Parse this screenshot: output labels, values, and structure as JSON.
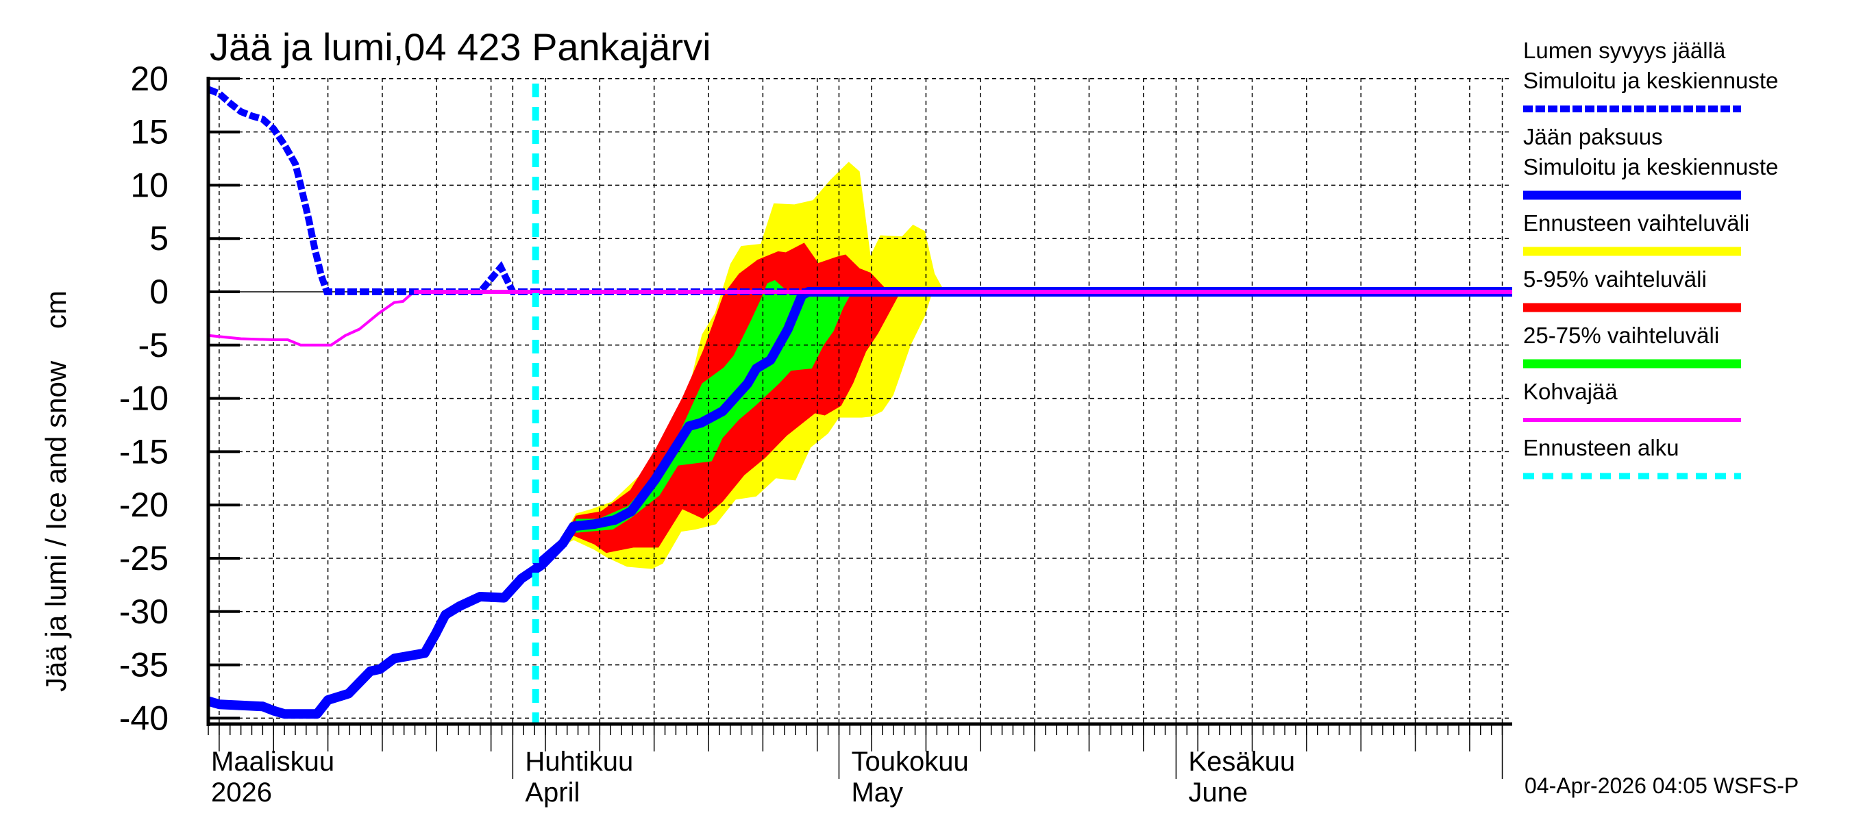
{
  "title": "Jää ja lumi,04 423 Pankajärvi",
  "y_axis_label": "Jää ja lumi / Ice and snow    cm",
  "timestamp": "04-Apr-2026 04:05 WSFS-P",
  "colors": {
    "snow_depth": "#0000ff",
    "ice_thickness": "#0000ff",
    "forecast_range": "#ffff00",
    "range_5_95": "#ff0000",
    "range_25_75": "#00ff00",
    "slush_ice": "#ff00ff",
    "forecast_start": "#00ffff",
    "grid": "#000000"
  },
  "x_axis": {
    "months": [
      {
        "fi": "Maaliskuu",
        "en": "2026",
        "day": 0
      },
      {
        "fi": "Huhtikuu",
        "en": "April",
        "day": 28
      },
      {
        "fi": "Toukokuu",
        "en": "May",
        "day": 58
      },
      {
        "fi": "Kesäkuu",
        "en": "June",
        "day": 89
      }
    ]
  },
  "legend": [
    {
      "line1": "Lumen syvyys jäällä",
      "line2": "Simuloitu ja keskiennuste",
      "style": "dashed-thick",
      "color": "#0000ff"
    },
    {
      "line1": "Jään paksuus",
      "line2": "Simuloitu ja keskiennuste",
      "style": "solid-thick",
      "color": "#0000ff"
    },
    {
      "line1": "Ennusteen vaihteluväli",
      "line2": "",
      "style": "solid-thick",
      "color": "#ffff00"
    },
    {
      "line1": "5-95% vaihteluväli",
      "line2": "",
      "style": "solid-thick",
      "color": "#ff0000"
    },
    {
      "line1": "25-75% vaihteluväli",
      "line2": "",
      "style": "solid-thick",
      "color": "#00ff00"
    },
    {
      "line1": "Kohvajää",
      "line2": "",
      "style": "solid-thin",
      "color": "#ff00ff"
    },
    {
      "line1": "Ennusteen alku",
      "line2": "",
      "style": "dashed-cyan",
      "color": "#00ffff"
    }
  ],
  "chart_data": {
    "type": "area",
    "title": "Jää ja lumi,04 423 Pankajärvi",
    "xlabel": "",
    "ylabel": "Jää ja lumi / Ice and snow cm",
    "ylim": [
      -40,
      20
    ],
    "yticks": [
      20,
      15,
      10,
      5,
      0,
      -5,
      -10,
      -15,
      -20,
      -25,
      -30,
      -35,
      -40
    ],
    "x_start_date": "2026-03-04",
    "x_end_date": "2026-07-03",
    "x_unit": "days since 2026-03-04",
    "xlim": [
      0,
      120
    ],
    "grid": true,
    "legend_position": "right",
    "forecast_start_day": 30.1,
    "series": [
      {
        "name": "Lumen syvyys jäällä (Simuloitu ja keskiennuste)",
        "kind": "line-dashed",
        "points": [
          [
            0,
            19.0
          ],
          [
            1,
            18.6
          ],
          [
            2,
            17.7
          ],
          [
            3,
            16.9
          ],
          [
            4,
            16.5
          ],
          [
            5,
            16.2
          ],
          [
            6,
            15.3
          ],
          [
            7,
            13.8
          ],
          [
            8,
            12.0
          ],
          [
            8.5,
            10.0
          ],
          [
            9.3,
            6.5
          ],
          [
            9.8,
            4.0
          ],
          [
            10.4,
            1.5
          ],
          [
            10.9,
            0
          ],
          [
            14,
            0
          ],
          [
            20,
            0
          ],
          [
            25,
            0
          ],
          [
            26.9,
            2.3
          ],
          [
            28,
            0
          ],
          [
            31,
            0
          ],
          [
            40,
            0
          ],
          [
            55,
            0
          ],
          [
            120,
            0
          ]
        ]
      },
      {
        "name": "Jään paksuus (Simuloitu)",
        "kind": "line-thick",
        "points": [
          [
            0,
            -38.4
          ],
          [
            1,
            -38.7
          ],
          [
            3,
            -38.8
          ],
          [
            5,
            -38.9
          ],
          [
            6,
            -39.3
          ],
          [
            7,
            -39.6
          ],
          [
            10,
            -39.6
          ],
          [
            11,
            -38.3
          ],
          [
            12.9,
            -37.7
          ],
          [
            14.9,
            -35.6
          ],
          [
            15.8,
            -35.4
          ],
          [
            17.1,
            -34.4
          ],
          [
            19.9,
            -33.9
          ],
          [
            20.9,
            -32.1
          ],
          [
            21.8,
            -30.3
          ],
          [
            23.1,
            -29.5
          ],
          [
            25,
            -28.6
          ],
          [
            27.2,
            -28.7
          ],
          [
            28.8,
            -26.9
          ],
          [
            30.7,
            -25.6
          ],
          [
            32.6,
            -23.6
          ],
          [
            33.6,
            -22.0
          ]
        ]
      },
      {
        "name": "Jään paksuus (keskiennuste)",
        "kind": "line-thick",
        "points": [
          [
            30.1,
            -25.8
          ],
          [
            32.6,
            -23.6
          ],
          [
            33.6,
            -22.0
          ],
          [
            35.5,
            -21.8
          ],
          [
            37.4,
            -21.4
          ],
          [
            38.9,
            -20.6
          ],
          [
            41.1,
            -17.6
          ],
          [
            43.4,
            -13.9
          ],
          [
            44.2,
            -12.6
          ],
          [
            45.3,
            -12.3
          ],
          [
            47.3,
            -11.2
          ],
          [
            49.6,
            -8.6
          ],
          [
            50.4,
            -7.2
          ],
          [
            51.7,
            -6.4
          ],
          [
            53.3,
            -3.5
          ],
          [
            54.6,
            -0.3
          ],
          [
            55.2,
            0
          ],
          [
            120,
            0
          ]
        ]
      },
      {
        "name": "Kohvajää",
        "kind": "line-thin",
        "points": [
          [
            0,
            -4.1
          ],
          [
            3,
            -4.4
          ],
          [
            6,
            -4.5
          ],
          [
            7.3,
            -4.5
          ],
          [
            8.5,
            -5.0
          ],
          [
            10,
            -5.0
          ],
          [
            11.3,
            -5.0
          ],
          [
            12.6,
            -4.1
          ],
          [
            13.9,
            -3.5
          ],
          [
            15.7,
            -2.0
          ],
          [
            17.1,
            -1.0
          ],
          [
            17.9,
            -0.9
          ],
          [
            18.9,
            0
          ],
          [
            120,
            0
          ]
        ]
      },
      {
        "name": "Ennusteen vaihteluväli",
        "kind": "band",
        "upper": [
          [
            30.1,
            -25.6
          ],
          [
            32.6,
            -23.0
          ],
          [
            33.8,
            -20.8
          ],
          [
            35.2,
            -20.4
          ],
          [
            37.1,
            -19.7
          ],
          [
            40,
            -16.9
          ],
          [
            43.1,
            -13.3
          ],
          [
            44.4,
            -8.2
          ],
          [
            45.4,
            -4.0
          ],
          [
            46.6,
            -2.0
          ],
          [
            47.3,
            0.3
          ],
          [
            48,
            2.6
          ],
          [
            49,
            4.3
          ],
          [
            50.8,
            4.5
          ],
          [
            52,
            8.3
          ],
          [
            53.9,
            8.2
          ],
          [
            55.6,
            8.6
          ],
          [
            57.2,
            10.5
          ],
          [
            58.9,
            12.2
          ],
          [
            59.9,
            11.3
          ],
          [
            60.9,
            3.4
          ],
          [
            61.8,
            5.3
          ],
          [
            63.8,
            5.2
          ],
          [
            64.8,
            6.3
          ],
          [
            65.9,
            5.7
          ],
          [
            66.8,
            1.7
          ],
          [
            67.5,
            0.4
          ],
          [
            68.2,
            0
          ]
        ],
        "lower": [
          [
            30.1,
            -25.9
          ],
          [
            32.6,
            -23.8
          ],
          [
            33.6,
            -23.3
          ],
          [
            35.5,
            -24.2
          ],
          [
            36.6,
            -24.9
          ],
          [
            38.5,
            -25.8
          ],
          [
            40.8,
            -26.0
          ],
          [
            41.8,
            -25.5
          ],
          [
            43.5,
            -22.5
          ],
          [
            44.8,
            -22.3
          ],
          [
            46.7,
            -21.8
          ],
          [
            48.5,
            -19.5
          ],
          [
            50.4,
            -19.2
          ],
          [
            52.2,
            -17.5
          ],
          [
            54,
            -17.7
          ],
          [
            55.4,
            -14.6
          ],
          [
            57,
            -13.3
          ],
          [
            58,
            -11.8
          ],
          [
            60.1,
            -11.8
          ],
          [
            61,
            -11.7
          ],
          [
            62,
            -11.2
          ],
          [
            63,
            -9.7
          ],
          [
            64.6,
            -5.0
          ],
          [
            65.9,
            -2.3
          ],
          [
            66.5,
            -0.3
          ],
          [
            67.2,
            0
          ]
        ]
      },
      {
        "name": "5-95% vaihteluväli",
        "kind": "band",
        "upper": [
          [
            30.1,
            -25.7
          ],
          [
            32.6,
            -23.3
          ],
          [
            33.8,
            -21.0
          ],
          [
            36.1,
            -20.6
          ],
          [
            38.8,
            -18.6
          ],
          [
            41.2,
            -14.6
          ],
          [
            43.6,
            -9.9
          ],
          [
            45.5,
            -5.5
          ],
          [
            47.4,
            -0.2
          ],
          [
            48.8,
            1.7
          ],
          [
            50.5,
            3.0
          ],
          [
            52.4,
            3.8
          ],
          [
            53.1,
            3.7
          ],
          [
            54.8,
            4.6
          ],
          [
            56.1,
            2.7
          ],
          [
            57.8,
            3.3
          ],
          [
            58.6,
            3.5
          ],
          [
            59.9,
            2.2
          ],
          [
            60.9,
            1.8
          ],
          [
            62.2,
            0.4
          ],
          [
            62.8,
            0
          ]
        ],
        "lower": [
          [
            30.1,
            -26.0
          ],
          [
            32.6,
            -23.6
          ],
          [
            33.6,
            -22.9
          ],
          [
            35.5,
            -23.7
          ],
          [
            36.6,
            -24.5
          ],
          [
            39.1,
            -24.0
          ],
          [
            41.4,
            -24.0
          ],
          [
            43.6,
            -20.4
          ],
          [
            45.5,
            -21.3
          ],
          [
            47.3,
            -19.7
          ],
          [
            49.3,
            -17.2
          ],
          [
            51.2,
            -15.6
          ],
          [
            53.2,
            -13.5
          ],
          [
            55.8,
            -11.4
          ],
          [
            56.7,
            -11.6
          ],
          [
            58.2,
            -10.7
          ],
          [
            59.3,
            -8.6
          ],
          [
            60.5,
            -5.6
          ],
          [
            61.6,
            -3.9
          ],
          [
            63.4,
            -0.5
          ],
          [
            63.8,
            0
          ]
        ]
      },
      {
        "name": "25-75% vaihteluväli",
        "kind": "band",
        "upper": [
          [
            33.8,
            -21.3
          ],
          [
            35.9,
            -21.3
          ],
          [
            38.6,
            -20.1
          ],
          [
            41.4,
            -16.8
          ],
          [
            43.3,
            -13.3
          ],
          [
            45.4,
            -8.6
          ],
          [
            47.4,
            -7.1
          ],
          [
            48.3,
            -6.0
          ],
          [
            49.9,
            -2.7
          ],
          [
            50.9,
            -0.5
          ],
          [
            51.4,
            0.8
          ],
          [
            52.1,
            1.1
          ],
          [
            53.3,
            0
          ]
        ],
        "lower": [
          [
            33.8,
            -22.6
          ],
          [
            37.2,
            -22.3
          ],
          [
            38.9,
            -21.2
          ],
          [
            41.5,
            -19.1
          ],
          [
            43.2,
            -16.3
          ],
          [
            46.3,
            -15.9
          ],
          [
            47.3,
            -13.7
          ],
          [
            48.8,
            -12.0
          ],
          [
            50.3,
            -10.7
          ],
          [
            52.5,
            -8.6
          ],
          [
            53.6,
            -7.4
          ],
          [
            55.5,
            -7.2
          ],
          [
            56.6,
            -5.0
          ],
          [
            57.5,
            -3.7
          ],
          [
            58.4,
            -1.5
          ],
          [
            59.2,
            0
          ]
        ]
      }
    ]
  }
}
